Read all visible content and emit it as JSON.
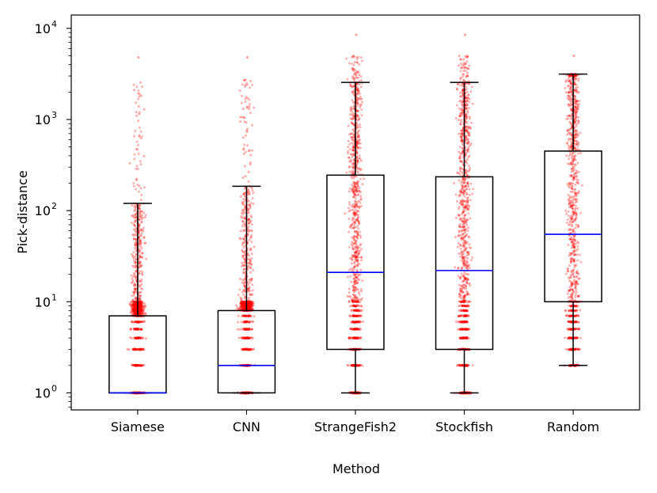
{
  "chart_data": {
    "type": "box",
    "title": "",
    "xlabel": "Method",
    "ylabel": "Pick-distance",
    "yscale": "log",
    "ylim": [
      0.65,
      14000
    ],
    "categories": [
      "Siamese",
      "CNN",
      "StrangeFish2",
      "Stockfish",
      "Random"
    ],
    "y_ticks": [
      {
        "value": 1,
        "base": "10",
        "exp": "0"
      },
      {
        "value": 10,
        "base": "10",
        "exp": "1"
      },
      {
        "value": 100,
        "base": "10",
        "exp": "2"
      },
      {
        "value": 1000,
        "base": "10",
        "exp": "3"
      },
      {
        "value": 10000,
        "base": "10",
        "exp": "4"
      }
    ],
    "boxes": [
      {
        "name": "Siamese",
        "whisker_low": 1,
        "q1": 1,
        "median": 1,
        "q3": 7,
        "whisker_high": 120,
        "max": 4800
      },
      {
        "name": "CNN",
        "whisker_low": 1,
        "q1": 1,
        "median": 2,
        "q3": 8,
        "whisker_high": 185,
        "max": 4800
      },
      {
        "name": "StrangeFish2",
        "whisker_low": 1,
        "q1": 3,
        "median": 21,
        "q3": 245,
        "whisker_high": 2550,
        "max": 8500
      },
      {
        "name": "Stockfish",
        "whisker_low": 1,
        "q1": 3,
        "median": 22,
        "q3": 235,
        "whisker_high": 2550,
        "max": 8500
      },
      {
        "name": "Random",
        "whisker_low": 2,
        "q1": 10,
        "median": 55,
        "q3": 450,
        "whisker_high": 3150,
        "max": 5000
      }
    ],
    "colors": {
      "points": "#ff0000",
      "median": "#0000ff",
      "box": "#000000"
    }
  }
}
